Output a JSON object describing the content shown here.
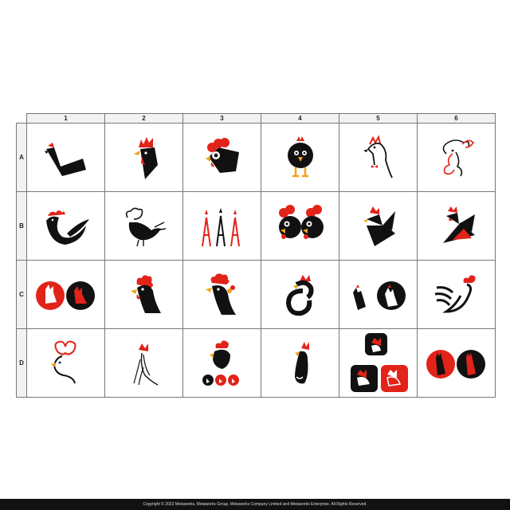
{
  "grid": {
    "columns": [
      "1",
      "2",
      "3",
      "4",
      "5",
      "6"
    ],
    "rows": [
      "A",
      "B",
      "C",
      "D"
    ],
    "logos": [
      [
        "angular-hen-icon",
        "angular-rooster-profile-icon",
        "round-rooster-head-icon",
        "standing-chick-icon",
        "line-rooster-bowtie-icon",
        "line-rooster-outline-icon"
      ],
      [
        "swoosh-rooster-icon",
        "line-hen-icon",
        "eiffel-tower-roosters-icon",
        "twin-rooster-faces-icon",
        "geometric-rooster-icon",
        "red-black-geometric-rooster-icon"
      ],
      [
        "round-rooster-badges-icon",
        "rooster-head-comb-icon",
        "rooster-head-rounded-icon",
        "curled-rooster-icon",
        "rooster-silhouette-circle-icon",
        "line-tail-rooster-icon"
      ],
      [
        "rooster-face-heart-comb-icon",
        "line-rooster-sketch-icon",
        "rooster-with-badges-icon",
        "tall-rooster-icon",
        "square-rooster-app-icons-icon",
        "red-black-round-rooster-icon"
      ]
    ]
  },
  "colors": {
    "red": "#e2231a",
    "black": "#111111",
    "yellow": "#f2a21b"
  },
  "footer": {
    "copyright": "Copyright © 2023 Metaworks, Metaworks Group, Metaworks Company Limited and Metaworks Enterprise. All Rights Reserved."
  }
}
